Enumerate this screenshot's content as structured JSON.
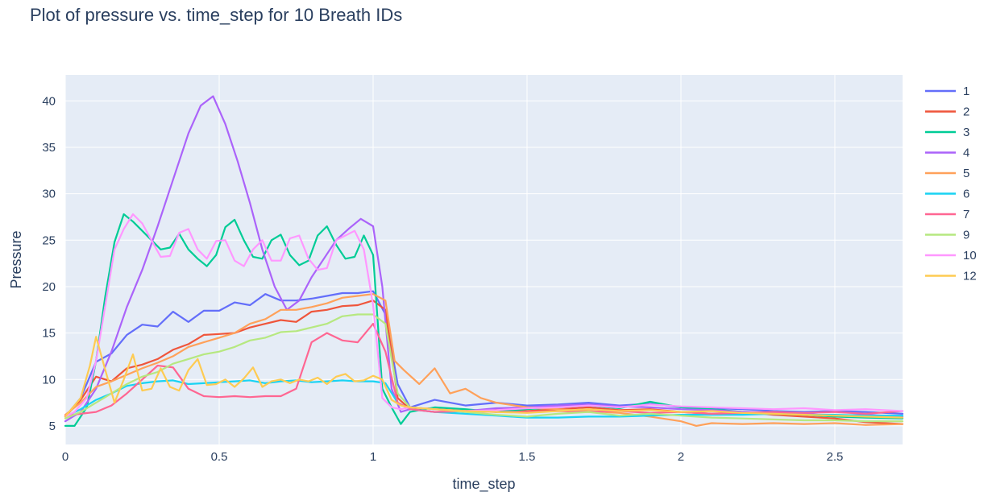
{
  "chart_data": {
    "type": "line",
    "title": "Plot of pressure vs. time_step for 10 Breath IDs",
    "xlabel": "time_step",
    "ylabel": "Pressure",
    "xlim": [
      0,
      2.72
    ],
    "ylim": [
      3.0,
      42.8
    ],
    "x_ticks": [
      0,
      0.5,
      1,
      1.5,
      2,
      2.5
    ],
    "x_tick_labels": [
      "0",
      "0.5",
      "1",
      "1.5",
      "2",
      "2.5"
    ],
    "y_ticks": [
      5,
      10,
      15,
      20,
      25,
      30,
      35,
      40
    ],
    "y_tick_labels": [
      "5",
      "10",
      "15",
      "20",
      "25",
      "30",
      "35",
      "40"
    ],
    "grid": true,
    "legend_position": "right",
    "plot_bgcolor": "#e5ecf6",
    "series": [
      {
        "name": "1",
        "color": "#636efa",
        "x": [
          0,
          0.05,
          0.1,
          0.15,
          0.2,
          0.25,
          0.3,
          0.35,
          0.4,
          0.45,
          0.5,
          0.55,
          0.6,
          0.65,
          0.7,
          0.75,
          0.8,
          0.85,
          0.9,
          0.95,
          1.0,
          1.04,
          1.08,
          1.12,
          1.2,
          1.3,
          1.4,
          1.5,
          1.6,
          1.7,
          1.8,
          1.9,
          2.0,
          2.1,
          2.2,
          2.3,
          2.4,
          2.5,
          2.6,
          2.72
        ],
        "y": [
          6.0,
          8.0,
          11.9,
          12.8,
          14.8,
          15.9,
          15.7,
          17.3,
          16.2,
          17.4,
          17.4,
          18.3,
          18.0,
          19.2,
          18.5,
          18.5,
          18.7,
          19.0,
          19.3,
          19.3,
          19.5,
          17.0,
          9.5,
          7.0,
          7.8,
          7.2,
          7.5,
          7.2,
          7.3,
          7.5,
          7.2,
          7.4,
          7.0,
          6.9,
          6.8,
          6.6,
          6.5,
          6.6,
          6.5,
          6.3
        ]
      },
      {
        "name": "2",
        "color": "#ef553b",
        "x": [
          0,
          0.05,
          0.1,
          0.15,
          0.2,
          0.25,
          0.3,
          0.35,
          0.4,
          0.45,
          0.5,
          0.55,
          0.6,
          0.65,
          0.7,
          0.75,
          0.8,
          0.85,
          0.9,
          0.95,
          1.0,
          1.04,
          1.08,
          1.12,
          1.2,
          1.3,
          1.4,
          1.5,
          1.6,
          1.7,
          1.8,
          1.9,
          2.0,
          2.1,
          2.2,
          2.3,
          2.4,
          2.5,
          2.6,
          2.72
        ],
        "y": [
          6.0,
          7.8,
          10.3,
          9.8,
          11.2,
          11.6,
          12.2,
          13.2,
          13.8,
          14.8,
          14.9,
          15.0,
          15.6,
          16.0,
          16.4,
          16.2,
          17.3,
          17.5,
          17.9,
          18.0,
          18.5,
          17.5,
          8.0,
          6.8,
          6.9,
          6.6,
          6.8,
          6.6,
          6.8,
          7.0,
          6.7,
          6.8,
          6.5,
          6.3,
          6.5,
          6.2,
          6.0,
          5.8,
          5.4,
          5.2
        ]
      },
      {
        "name": "3",
        "color": "#00cc96",
        "x": [
          0,
          0.03,
          0.07,
          0.1,
          0.13,
          0.16,
          0.19,
          0.22,
          0.25,
          0.28,
          0.31,
          0.34,
          0.37,
          0.4,
          0.43,
          0.46,
          0.49,
          0.52,
          0.55,
          0.58,
          0.61,
          0.64,
          0.67,
          0.7,
          0.73,
          0.76,
          0.79,
          0.82,
          0.85,
          0.88,
          0.91,
          0.94,
          0.97,
          1.0,
          1.03,
          1.06,
          1.09,
          1.12,
          1.2,
          1.3,
          1.4,
          1.5,
          1.6,
          1.7,
          1.8,
          1.9,
          2.0,
          2.1,
          2.2,
          2.3,
          2.4,
          2.5,
          2.6,
          2.72
        ],
        "y": [
          5.0,
          5.0,
          7.0,
          12.0,
          19.0,
          24.8,
          27.8,
          27.0,
          26.0,
          25.0,
          24.0,
          24.2,
          25.7,
          24.0,
          23.0,
          22.2,
          23.4,
          26.4,
          27.2,
          25.0,
          23.2,
          23.0,
          25.0,
          25.6,
          23.4,
          22.3,
          22.8,
          25.5,
          26.5,
          24.5,
          23.0,
          23.2,
          25.5,
          23.4,
          9.0,
          7.0,
          5.2,
          6.5,
          7.0,
          6.8,
          6.5,
          6.8,
          7.0,
          7.2,
          6.9,
          7.6,
          7.0,
          6.8,
          6.5,
          6.3,
          6.2,
          6.0,
          5.9,
          5.8
        ]
      },
      {
        "name": "4",
        "color": "#ab63fa",
        "x": [
          0,
          0.05,
          0.1,
          0.15,
          0.2,
          0.25,
          0.3,
          0.35,
          0.4,
          0.44,
          0.48,
          0.52,
          0.56,
          0.6,
          0.64,
          0.68,
          0.72,
          0.76,
          0.8,
          0.84,
          0.88,
          0.92,
          0.96,
          1.0,
          1.03,
          1.06,
          1.09,
          1.12,
          1.2,
          1.3,
          1.4,
          1.5,
          1.6,
          1.7,
          1.8,
          1.9,
          2.0,
          2.1,
          2.2,
          2.3,
          2.4,
          2.5,
          2.6,
          2.72
        ],
        "y": [
          5.5,
          6.5,
          9.0,
          13.0,
          17.8,
          21.8,
          26.5,
          31.5,
          36.5,
          39.5,
          40.5,
          37.5,
          33.5,
          29.0,
          24.0,
          20.0,
          17.5,
          18.5,
          21.0,
          23.0,
          25.0,
          26.2,
          27.3,
          26.5,
          20.0,
          9.0,
          6.5,
          6.8,
          6.5,
          6.6,
          6.9,
          7.0,
          7.2,
          7.3,
          7.1,
          7.0,
          6.8,
          6.7,
          6.5,
          6.4,
          6.3,
          6.1,
          6.2,
          6.0
        ]
      },
      {
        "name": "5",
        "color": "#ffa15a",
        "x": [
          0,
          0.05,
          0.1,
          0.15,
          0.2,
          0.25,
          0.3,
          0.35,
          0.4,
          0.45,
          0.5,
          0.55,
          0.6,
          0.65,
          0.7,
          0.75,
          0.8,
          0.85,
          0.9,
          0.95,
          1.0,
          1.04,
          1.07,
          1.1,
          1.15,
          1.2,
          1.25,
          1.3,
          1.35,
          1.4,
          1.5,
          1.6,
          1.7,
          1.8,
          1.9,
          2.0,
          2.05,
          2.1,
          2.2,
          2.3,
          2.4,
          2.5,
          2.6,
          2.72
        ],
        "y": [
          6.2,
          7.5,
          9.2,
          9.8,
          10.5,
          11.2,
          11.8,
          12.5,
          13.5,
          14.0,
          14.5,
          15.0,
          16.0,
          16.5,
          17.5,
          17.5,
          17.8,
          18.2,
          18.8,
          19.0,
          19.2,
          18.5,
          12.0,
          11.0,
          9.5,
          11.2,
          8.5,
          9.0,
          8.0,
          7.5,
          7.0,
          6.8,
          6.6,
          6.4,
          6.0,
          5.5,
          5.0,
          5.3,
          5.2,
          5.3,
          5.2,
          5.3,
          5.1,
          5.2
        ]
      },
      {
        "name": "6",
        "color": "#19d3f3",
        "x": [
          0,
          0.05,
          0.1,
          0.15,
          0.2,
          0.25,
          0.3,
          0.35,
          0.4,
          0.45,
          0.5,
          0.55,
          0.6,
          0.65,
          0.7,
          0.75,
          0.8,
          0.85,
          0.9,
          0.95,
          1.0,
          1.04,
          1.08,
          1.12,
          1.2,
          1.3,
          1.4,
          1.5,
          1.6,
          1.7,
          1.8,
          1.9,
          2.0,
          2.1,
          2.2,
          2.3,
          2.4,
          2.5,
          2.6,
          2.72
        ],
        "y": [
          6.0,
          6.8,
          7.8,
          8.5,
          9.3,
          9.6,
          9.8,
          9.9,
          9.5,
          9.6,
          9.7,
          9.8,
          9.9,
          9.6,
          9.8,
          9.9,
          9.7,
          9.8,
          9.9,
          9.8,
          9.8,
          9.6,
          7.5,
          6.8,
          6.5,
          6.3,
          6.1,
          5.9,
          5.9,
          6.0,
          6.0,
          6.1,
          6.2,
          6.2,
          6.2,
          6.3,
          6.2,
          6.2,
          6.1,
          6.1
        ]
      },
      {
        "name": "7",
        "color": "#ff6692",
        "x": [
          0,
          0.05,
          0.1,
          0.15,
          0.2,
          0.25,
          0.3,
          0.35,
          0.4,
          0.45,
          0.5,
          0.55,
          0.6,
          0.65,
          0.7,
          0.75,
          0.8,
          0.85,
          0.9,
          0.95,
          1.0,
          1.04,
          1.08,
          1.12,
          1.2,
          1.3,
          1.4,
          1.5,
          1.6,
          1.7,
          1.8,
          1.9,
          2.0,
          2.1,
          2.2,
          2.3,
          2.4,
          2.5,
          2.6,
          2.72
        ],
        "y": [
          6.1,
          6.3,
          6.5,
          7.2,
          8.5,
          10.0,
          11.5,
          11.3,
          9.0,
          8.2,
          8.1,
          8.2,
          8.1,
          8.2,
          8.2,
          9.0,
          14.0,
          15.0,
          14.2,
          14.0,
          16.0,
          13.0,
          7.5,
          6.8,
          6.5,
          6.6,
          6.5,
          6.5,
          6.6,
          6.5,
          6.6,
          6.4,
          6.5,
          6.3,
          6.4,
          6.5,
          6.4,
          6.5,
          6.3,
          6.6
        ]
      },
      {
        "name": "9",
        "color": "#b6e880",
        "x": [
          0,
          0.05,
          0.1,
          0.15,
          0.2,
          0.25,
          0.3,
          0.35,
          0.4,
          0.45,
          0.5,
          0.55,
          0.6,
          0.65,
          0.7,
          0.75,
          0.8,
          0.85,
          0.9,
          0.95,
          1.0,
          1.04,
          1.08,
          1.12,
          1.2,
          1.3,
          1.4,
          1.5,
          1.6,
          1.7,
          1.8,
          1.9,
          2.0,
          2.1,
          2.2,
          2.3,
          2.4,
          2.5,
          2.6,
          2.72
        ],
        "y": [
          5.8,
          6.5,
          7.5,
          8.5,
          9.5,
          10.3,
          10.8,
          11.7,
          12.2,
          12.7,
          13.0,
          13.5,
          14.2,
          14.5,
          15.1,
          15.2,
          15.6,
          16.0,
          16.8,
          17.0,
          17.0,
          16.0,
          8.5,
          7.0,
          6.8,
          6.5,
          6.2,
          6.0,
          6.3,
          6.5,
          6.1,
          6.3,
          6.1,
          5.9,
          5.8,
          5.7,
          5.6,
          5.6,
          5.5,
          5.5
        ]
      },
      {
        "name": "10",
        "color": "#ff97ff",
        "x": [
          0,
          0.03,
          0.07,
          0.1,
          0.13,
          0.16,
          0.19,
          0.22,
          0.25,
          0.28,
          0.31,
          0.34,
          0.37,
          0.4,
          0.43,
          0.46,
          0.49,
          0.52,
          0.55,
          0.58,
          0.61,
          0.64,
          0.67,
          0.7,
          0.73,
          0.76,
          0.79,
          0.82,
          0.85,
          0.88,
          0.91,
          0.94,
          0.97,
          1.0,
          1.03,
          1.06,
          1.09,
          1.12,
          1.2,
          1.3,
          1.4,
          1.5,
          1.6,
          1.7,
          1.8,
          1.9,
          2.0,
          2.1,
          2.2,
          2.3,
          2.4,
          2.5,
          2.6,
          2.72
        ],
        "y": [
          6.0,
          6.5,
          8.0,
          12.0,
          18.0,
          24.0,
          26.2,
          27.8,
          26.8,
          25.0,
          23.2,
          23.3,
          25.8,
          26.2,
          24.0,
          23.0,
          24.9,
          25.0,
          22.8,
          22.2,
          24.0,
          25.0,
          22.8,
          22.8,
          25.2,
          25.5,
          23.0,
          21.8,
          22.0,
          25.0,
          25.5,
          26.0,
          24.0,
          18.0,
          8.0,
          7.0,
          6.8,
          7.0,
          6.8,
          6.6,
          6.7,
          6.9,
          7.0,
          7.2,
          7.0,
          7.3,
          7.1,
          7.0,
          6.9,
          6.8,
          6.9,
          6.7,
          6.8,
          6.6
        ]
      },
      {
        "name": "12",
        "color": "#fecb52",
        "x": [
          0,
          0.05,
          0.08,
          0.1,
          0.13,
          0.16,
          0.19,
          0.22,
          0.25,
          0.28,
          0.31,
          0.34,
          0.37,
          0.4,
          0.43,
          0.46,
          0.49,
          0.52,
          0.55,
          0.58,
          0.61,
          0.64,
          0.67,
          0.7,
          0.73,
          0.76,
          0.79,
          0.82,
          0.85,
          0.88,
          0.91,
          0.94,
          0.97,
          1.0,
          1.03,
          1.06,
          1.09,
          1.12,
          1.2,
          1.3,
          1.4,
          1.5,
          1.6,
          1.7,
          1.8,
          1.9,
          2.0,
          2.1,
          2.2,
          2.3,
          2.4,
          2.5,
          2.6,
          2.72
        ],
        "y": [
          6.0,
          8.0,
          11.5,
          14.6,
          11.0,
          7.5,
          10.0,
          12.7,
          8.8,
          9.0,
          11.2,
          9.2,
          8.8,
          11.0,
          12.2,
          9.4,
          9.5,
          10.0,
          9.2,
          10.1,
          11.3,
          9.2,
          9.8,
          10.0,
          9.6,
          10.0,
          9.8,
          10.2,
          9.5,
          10.3,
          10.6,
          9.8,
          9.9,
          10.4,
          10.0,
          7.8,
          7.2,
          7.0,
          6.8,
          6.6,
          6.5,
          6.4,
          6.6,
          6.8,
          6.6,
          6.7,
          6.5,
          6.6,
          6.4,
          6.3,
          6.2,
          6.1,
          6.0,
          5.9
        ]
      }
    ]
  }
}
